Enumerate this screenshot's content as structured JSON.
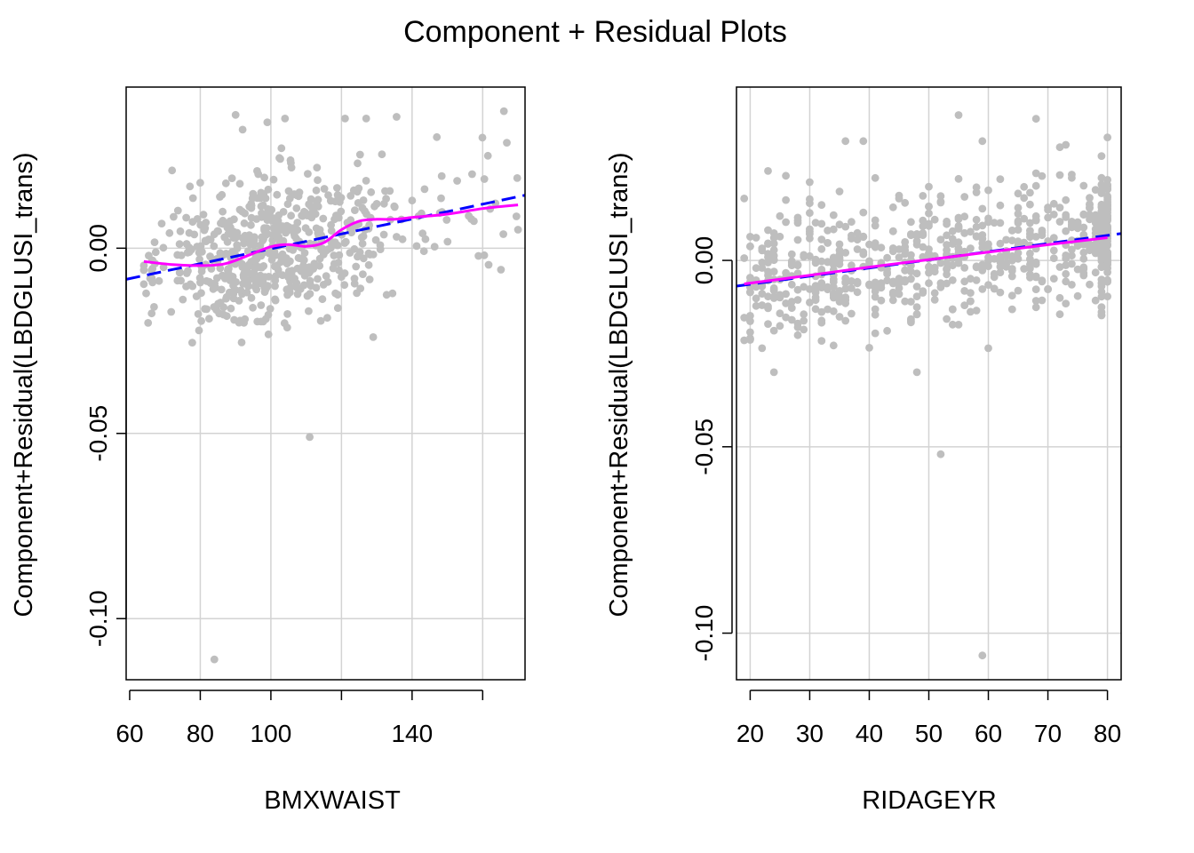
{
  "figure": {
    "title": "Component + Residual Plots",
    "colors": {
      "points": "#bebebe",
      "grid": "#d3d3d3",
      "linear_fit": "#0000ff",
      "smooth": "#ff00ff"
    }
  },
  "chart_data": [
    {
      "type": "scatter",
      "title": "",
      "xlabel": "BMXWAIST",
      "ylabel": "Component+Residual(LBDGLUSI_trans)",
      "xlim": [
        59,
        172
      ],
      "ylim": [
        -0.1165,
        0.0435
      ],
      "xticks": [
        60,
        80,
        100,
        140
      ],
      "xgrid": [
        80,
        100,
        120,
        140,
        160
      ],
      "yticks": [
        -0.1,
        -0.05,
        0.0
      ],
      "ytick_labels": [
        "-0.10",
        "-0.05",
        "0.00"
      ],
      "grid": true,
      "scatter_summary": {
        "n": 600,
        "x_range": [
          64,
          172
        ],
        "center": 100,
        "noise_sd": 0.0095,
        "seed": 11
      },
      "points": [
        [
          84,
          -0.111
        ],
        [
          111,
          -0.051
        ],
        [
          129,
          -0.024
        ],
        [
          90,
          0.036
        ],
        [
          99,
          0.034
        ],
        [
          104,
          0.035
        ],
        [
          127,
          0.035
        ],
        [
          166,
          0.037
        ],
        [
          147,
          0.03
        ],
        [
          72,
          0.021
        ],
        [
          157,
          0.02
        ],
        [
          92,
          0.032
        ],
        [
          103,
          0.027
        ],
        [
          121,
          0.035
        ],
        [
          170,
          0.005
        ]
      ],
      "linear_fit": {
        "x": [
          59,
          172
        ],
        "y": [
          -0.0084,
          0.0143
        ]
      },
      "smooth": {
        "x": [
          64,
          72,
          80,
          87,
          94,
          100,
          105,
          110,
          115,
          120,
          125,
          130,
          135,
          141,
          150,
          160,
          170
        ],
        "y": [
          -0.0036,
          -0.0044,
          -0.0047,
          -0.0042,
          -0.0018,
          0.0004,
          0.001,
          0.0005,
          0.0015,
          0.005,
          0.0073,
          0.0078,
          0.0078,
          0.0084,
          0.0092,
          0.0107,
          0.0117
        ]
      }
    },
    {
      "type": "scatter",
      "title": "",
      "xlabel": "RIDAGEYR",
      "ylabel": "Component+Residual(LBDGLUSI_trans)",
      "xlim": [
        17.7,
        82.3
      ],
      "ylim": [
        -0.1125,
        0.0465
      ],
      "xticks": [
        20,
        30,
        40,
        50,
        60,
        70,
        80
      ],
      "xgrid": [
        20,
        30,
        40,
        50,
        60,
        70,
        80
      ],
      "yticks": [
        -0.1,
        -0.05,
        0.0
      ],
      "ytick_labels": [
        "-0.10",
        "-0.05",
        "0.00"
      ],
      "grid": true,
      "scatter_summary": {
        "n": 700,
        "x_range": [
          19,
          80
        ],
        "slope": 0.00022,
        "intercept": -0.01085,
        "noise_sd": 0.0085,
        "seed": 23
      },
      "points": [
        [
          59,
          -0.106
        ],
        [
          52,
          -0.052
        ],
        [
          48,
          -0.03
        ],
        [
          24,
          -0.03
        ],
        [
          55,
          0.039
        ],
        [
          68,
          0.038
        ],
        [
          80,
          0.033
        ],
        [
          36,
          0.032
        ],
        [
          39,
          0.032
        ],
        [
          59,
          0.032
        ],
        [
          73,
          0.031
        ],
        [
          30,
          0.021
        ],
        [
          23,
          0.024
        ]
      ],
      "linear_fit": {
        "x": [
          17.7,
          82.3
        ],
        "y": [
          -0.0069,
          0.0072
        ]
      },
      "smooth": {
        "x": [
          19,
          30,
          40,
          50,
          60,
          70,
          80
        ],
        "y": [
          -0.0063,
          -0.004,
          -0.0018,
          0.0002,
          0.0022,
          0.0042,
          0.0061
        ]
      }
    }
  ]
}
